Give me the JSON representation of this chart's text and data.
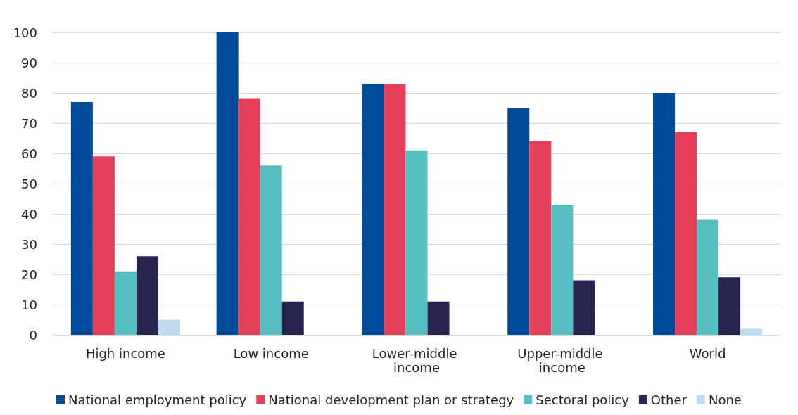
{
  "chart_data": {
    "type": "bar",
    "categories": [
      "High income",
      "Low income",
      "Lower-middle income",
      "Upper-middle income",
      "World"
    ],
    "series": [
      {
        "name": "National employment policy",
        "color": "#004a9a",
        "values": [
          77,
          100,
          83,
          75,
          80
        ]
      },
      {
        "name": "National development plan or strategy",
        "color": "#e4405a",
        "values": [
          59,
          78,
          83,
          64,
          67
        ]
      },
      {
        "name": "Sectoral policy",
        "color": "#56bfbf",
        "values": [
          21,
          56,
          61,
          43,
          38
        ]
      },
      {
        "name": "Other",
        "color": "#27244f",
        "values": [
          26,
          11,
          11,
          18,
          19
        ]
      },
      {
        "name": "None",
        "color": "#c0dcf5",
        "values": [
          5,
          0,
          0,
          0,
          2
        ]
      }
    ],
    "ylim": [
      0,
      100
    ],
    "yticks": [
      0,
      10,
      20,
      30,
      40,
      50,
      60,
      70,
      80,
      90,
      100
    ],
    "grid": "y",
    "legend": "bottom"
  }
}
